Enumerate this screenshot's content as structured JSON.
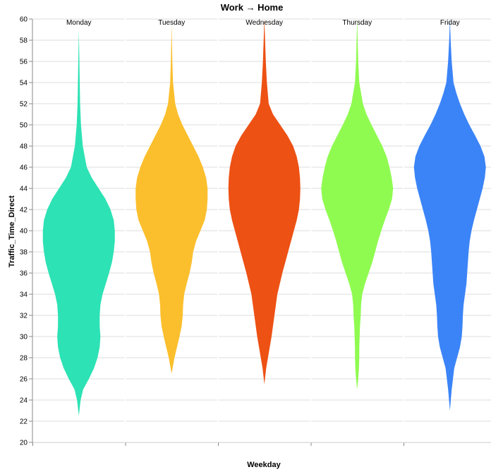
{
  "chart_data": {
    "type": "violin",
    "title": "Work → Home",
    "xlabel": "Weekday",
    "ylabel": "Traffic_Time_Direct",
    "ylim": [
      20,
      60
    ],
    "yticks": [
      20,
      22,
      24,
      26,
      28,
      30,
      32,
      34,
      36,
      38,
      40,
      42,
      44,
      46,
      48,
      50,
      52,
      54,
      56,
      58,
      60
    ],
    "grid": true,
    "legend": "none",
    "categories": [
      "Monday",
      "Tuesday",
      "Wednesday",
      "Thursday",
      "Friday"
    ],
    "series": [
      {
        "category": "Monday",
        "color": "#2de2b4",
        "range": [
          22.5,
          59
        ],
        "density": [
          [
            22.5,
            0.0
          ],
          [
            24,
            0.05
          ],
          [
            25,
            0.12
          ],
          [
            26,
            0.28
          ],
          [
            27,
            0.42
          ],
          [
            28,
            0.52
          ],
          [
            29,
            0.58
          ],
          [
            30,
            0.6
          ],
          [
            31,
            0.58
          ],
          [
            32,
            0.58
          ],
          [
            33,
            0.6
          ],
          [
            34,
            0.66
          ],
          [
            35,
            0.75
          ],
          [
            36,
            0.84
          ],
          [
            37,
            0.92
          ],
          [
            38,
            0.97
          ],
          [
            39,
            1.0
          ],
          [
            40,
            1.0
          ],
          [
            41,
            0.97
          ],
          [
            42,
            0.88
          ],
          [
            43,
            0.74
          ],
          [
            44,
            0.55
          ],
          [
            45,
            0.36
          ],
          [
            46,
            0.22
          ],
          [
            48,
            0.11
          ],
          [
            50,
            0.06
          ],
          [
            52,
            0.035
          ],
          [
            55,
            0.02
          ],
          [
            59,
            0.0
          ]
        ]
      },
      {
        "category": "Tuesday",
        "color": "#fbbf2d",
        "range": [
          26.5,
          59.5
        ],
        "density": [
          [
            26.5,
            0.0
          ],
          [
            28,
            0.08
          ],
          [
            29,
            0.15
          ],
          [
            30,
            0.22
          ],
          [
            31,
            0.28
          ],
          [
            32,
            0.31
          ],
          [
            33,
            0.32
          ],
          [
            34,
            0.35
          ],
          [
            35,
            0.42
          ],
          [
            36,
            0.5
          ],
          [
            37,
            0.56
          ],
          [
            38,
            0.6
          ],
          [
            39,
            0.68
          ],
          [
            40,
            0.8
          ],
          [
            41,
            0.92
          ],
          [
            42,
            0.98
          ],
          [
            43,
            1.0
          ],
          [
            44,
            1.0
          ],
          [
            45,
            0.96
          ],
          [
            46,
            0.87
          ],
          [
            47,
            0.75
          ],
          [
            48,
            0.6
          ],
          [
            49,
            0.45
          ],
          [
            50,
            0.3
          ],
          [
            51,
            0.18
          ],
          [
            52,
            0.1
          ],
          [
            54,
            0.04
          ],
          [
            56,
            0.02
          ],
          [
            59.5,
            0.0
          ]
        ]
      },
      {
        "category": "Wednesday",
        "color": "#ed5114",
        "range": [
          25.5,
          60
        ],
        "density": [
          [
            25.5,
            0.0
          ],
          [
            27,
            0.05
          ],
          [
            28,
            0.1
          ],
          [
            30,
            0.2
          ],
          [
            32,
            0.28
          ],
          [
            34,
            0.36
          ],
          [
            36,
            0.5
          ],
          [
            38,
            0.66
          ],
          [
            40,
            0.82
          ],
          [
            41,
            0.9
          ],
          [
            42,
            0.96
          ],
          [
            43,
            0.99
          ],
          [
            44,
            1.0
          ],
          [
            45,
            0.99
          ],
          [
            46,
            0.96
          ],
          [
            47,
            0.9
          ],
          [
            48,
            0.8
          ],
          [
            49,
            0.64
          ],
          [
            50,
            0.44
          ],
          [
            51,
            0.24
          ],
          [
            52,
            0.12
          ],
          [
            54,
            0.07
          ],
          [
            56,
            0.04
          ],
          [
            58,
            0.02
          ],
          [
            60,
            0.0
          ]
        ]
      },
      {
        "category": "Thursday",
        "color": "#8ffb51",
        "range": [
          25,
          60
        ],
        "density": [
          [
            25,
            0.0
          ],
          [
            26,
            0.03
          ],
          [
            27,
            0.05
          ],
          [
            28,
            0.06
          ],
          [
            29,
            0.06
          ],
          [
            30,
            0.07
          ],
          [
            31,
            0.08
          ],
          [
            32,
            0.1
          ],
          [
            33,
            0.11
          ],
          [
            34,
            0.14
          ],
          [
            35,
            0.22
          ],
          [
            36,
            0.32
          ],
          [
            37,
            0.42
          ],
          [
            38,
            0.5
          ],
          [
            39,
            0.58
          ],
          [
            40,
            0.67
          ],
          [
            41,
            0.77
          ],
          [
            42,
            0.88
          ],
          [
            43,
            0.97
          ],
          [
            44,
            1.0
          ],
          [
            45,
            0.96
          ],
          [
            46,
            0.9
          ],
          [
            47,
            0.82
          ],
          [
            48,
            0.7
          ],
          [
            49,
            0.55
          ],
          [
            50,
            0.4
          ],
          [
            51,
            0.26
          ],
          [
            52,
            0.16
          ],
          [
            54,
            0.06
          ],
          [
            56,
            0.03
          ],
          [
            58,
            0.015
          ],
          [
            60,
            0.0
          ]
        ]
      },
      {
        "category": "Friday",
        "color": "#3b84f7",
        "range": [
          23,
          60
        ],
        "density": [
          [
            23,
            0.0
          ],
          [
            25,
            0.05
          ],
          [
            27,
            0.12
          ],
          [
            28,
            0.2
          ],
          [
            29,
            0.28
          ],
          [
            30,
            0.33
          ],
          [
            31,
            0.35
          ],
          [
            32,
            0.36
          ],
          [
            33,
            0.38
          ],
          [
            34,
            0.42
          ],
          [
            35,
            0.46
          ],
          [
            36,
            0.48
          ],
          [
            37,
            0.5
          ],
          [
            38,
            0.52
          ],
          [
            39,
            0.55
          ],
          [
            40,
            0.6
          ],
          [
            41,
            0.67
          ],
          [
            42,
            0.75
          ],
          [
            43,
            0.83
          ],
          [
            44,
            0.91
          ],
          [
            45,
            0.97
          ],
          [
            46,
            1.0
          ],
          [
            47,
            0.96
          ],
          [
            48,
            0.85
          ],
          [
            49,
            0.7
          ],
          [
            50,
            0.54
          ],
          [
            51,
            0.4
          ],
          [
            52,
            0.28
          ],
          [
            53,
            0.18
          ],
          [
            54,
            0.1
          ],
          [
            56,
            0.05
          ],
          [
            58,
            0.02
          ],
          [
            60,
            0.0
          ]
        ]
      }
    ]
  }
}
